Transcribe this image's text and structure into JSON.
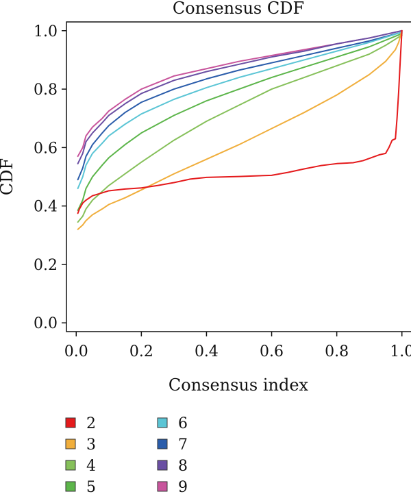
{
  "chart_data": {
    "type": "line",
    "title": "Consensus CDF",
    "xlabel": "Consensus index",
    "ylabel": "CDF",
    "xlim": [
      -0.03,
      1.03
    ],
    "ylim": [
      -0.03,
      1.03
    ],
    "xticks": [
      0.0,
      0.2,
      0.4,
      0.6,
      0.8,
      1.0
    ],
    "xtick_labels": [
      "0.0",
      "0.2",
      "0.4",
      "0.6",
      "0.8",
      "1.0"
    ],
    "yticks": [
      0.0,
      0.2,
      0.4,
      0.6,
      0.8,
      1.0
    ],
    "ytick_labels": [
      "0.0",
      "0.2",
      "0.4",
      "0.6",
      "0.8",
      "1.0"
    ],
    "grid": false,
    "legend": "bottom-left",
    "series": [
      {
        "name": "2",
        "color": "#e41a1c",
        "x": [
          0.005,
          0.01,
          0.02,
          0.03,
          0.05,
          0.08,
          0.1,
          0.15,
          0.2,
          0.25,
          0.3,
          0.35,
          0.4,
          0.5,
          0.6,
          0.65,
          0.7,
          0.75,
          0.8,
          0.85,
          0.88,
          0.9,
          0.93,
          0.95,
          0.96,
          0.97,
          0.98,
          0.985,
          0.99,
          0.995,
          1.0
        ],
        "y": [
          0.375,
          0.39,
          0.41,
          0.42,
          0.435,
          0.445,
          0.452,
          0.458,
          0.462,
          0.47,
          0.48,
          0.492,
          0.498,
          0.501,
          0.505,
          0.515,
          0.527,
          0.538,
          0.545,
          0.548,
          0.555,
          0.563,
          0.575,
          0.58,
          0.6,
          0.625,
          0.63,
          0.7,
          0.79,
          0.9,
          1.0
        ]
      },
      {
        "name": "3",
        "color": "#f0ae3c",
        "x": [
          0.005,
          0.02,
          0.03,
          0.05,
          0.08,
          0.1,
          0.15,
          0.2,
          0.3,
          0.4,
          0.5,
          0.6,
          0.7,
          0.8,
          0.9,
          0.95,
          0.98,
          0.99,
          1.0
        ],
        "y": [
          0.32,
          0.335,
          0.35,
          0.37,
          0.39,
          0.405,
          0.428,
          0.455,
          0.51,
          0.56,
          0.61,
          0.665,
          0.72,
          0.78,
          0.85,
          0.895,
          0.935,
          0.96,
          1.0
        ]
      },
      {
        "name": "4",
        "color": "#86c05a",
        "x": [
          0.005,
          0.02,
          0.03,
          0.05,
          0.08,
          0.1,
          0.15,
          0.2,
          0.3,
          0.4,
          0.5,
          0.6,
          0.7,
          0.8,
          0.9,
          0.95,
          1.0
        ],
        "y": [
          0.345,
          0.365,
          0.39,
          0.42,
          0.45,
          0.47,
          0.51,
          0.55,
          0.625,
          0.69,
          0.745,
          0.8,
          0.84,
          0.88,
          0.92,
          0.95,
          0.985
        ]
      },
      {
        "name": "5",
        "color": "#5cb54a",
        "x": [
          0.005,
          0.02,
          0.03,
          0.05,
          0.08,
          0.1,
          0.15,
          0.2,
          0.3,
          0.4,
          0.5,
          0.6,
          0.7,
          0.8,
          0.9,
          1.0
        ],
        "y": [
          0.385,
          0.42,
          0.46,
          0.5,
          0.54,
          0.565,
          0.61,
          0.65,
          0.71,
          0.76,
          0.8,
          0.84,
          0.875,
          0.91,
          0.945,
          0.99
        ]
      },
      {
        "name": "6",
        "color": "#5bc5d5",
        "x": [
          0.005,
          0.02,
          0.03,
          0.05,
          0.08,
          0.1,
          0.15,
          0.2,
          0.3,
          0.4,
          0.5,
          0.6,
          0.7,
          0.8,
          0.9,
          1.0
        ],
        "y": [
          0.46,
          0.5,
          0.54,
          0.58,
          0.615,
          0.64,
          0.68,
          0.715,
          0.765,
          0.805,
          0.84,
          0.87,
          0.9,
          0.93,
          0.96,
          0.995
        ]
      },
      {
        "name": "7",
        "color": "#2a5caa",
        "x": [
          0.005,
          0.02,
          0.03,
          0.05,
          0.08,
          0.1,
          0.15,
          0.2,
          0.3,
          0.4,
          0.5,
          0.6,
          0.7,
          0.8,
          0.9,
          1.0
        ],
        "y": [
          0.49,
          0.53,
          0.57,
          0.61,
          0.65,
          0.675,
          0.72,
          0.755,
          0.8,
          0.835,
          0.865,
          0.89,
          0.915,
          0.94,
          0.965,
          0.995
        ]
      },
      {
        "name": "8",
        "color": "#6a4fa3",
        "x": [
          0.005,
          0.02,
          0.03,
          0.05,
          0.08,
          0.1,
          0.15,
          0.2,
          0.3,
          0.4,
          0.5,
          0.6,
          0.7,
          0.8,
          0.9,
          1.0
        ],
        "y": [
          0.545,
          0.58,
          0.62,
          0.65,
          0.685,
          0.71,
          0.75,
          0.785,
          0.83,
          0.86,
          0.885,
          0.91,
          0.93,
          0.955,
          0.975,
          1.0
        ]
      },
      {
        "name": "9",
        "color": "#c8559c",
        "x": [
          0.005,
          0.02,
          0.03,
          0.05,
          0.08,
          0.1,
          0.15,
          0.2,
          0.3,
          0.4,
          0.5,
          0.6,
          0.7,
          0.8,
          0.9,
          1.0
        ],
        "y": [
          0.57,
          0.6,
          0.64,
          0.67,
          0.7,
          0.725,
          0.765,
          0.8,
          0.845,
          0.87,
          0.895,
          0.915,
          0.935,
          0.955,
          0.975,
          1.0
        ]
      }
    ]
  }
}
